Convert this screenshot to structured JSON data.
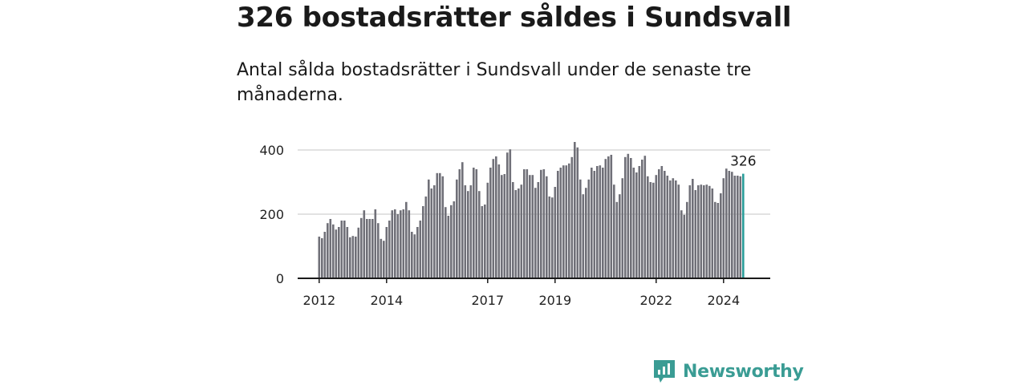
{
  "header": {
    "title": "326 bostadsrätter såldes i Sundsvall",
    "subtitle": "Antal sålda bostadsrätter i Sundsvall under de senaste tre månaderna."
  },
  "brand": {
    "name": "Newsworthy",
    "color": "#3a9c94"
  },
  "chart_data": {
    "type": "bar",
    "x_start": "2012-01",
    "frequency": "monthly",
    "x_ticks": [
      "2012",
      "2014",
      "2017",
      "2019",
      "2022",
      "2024"
    ],
    "y_ticks": [
      "0",
      "200",
      "400"
    ],
    "ylim": [
      0,
      440
    ],
    "grid": true,
    "values": [
      130,
      125,
      145,
      172,
      185,
      168,
      152,
      160,
      180,
      180,
      160,
      128,
      132,
      130,
      158,
      188,
      212,
      185,
      185,
      185,
      215,
      172,
      123,
      117,
      160,
      180,
      212,
      215,
      200,
      212,
      215,
      238,
      212,
      145,
      137,
      160,
      180,
      225,
      255,
      308,
      280,
      290,
      328,
      328,
      318,
      222,
      195,
      228,
      240,
      308,
      340,
      362,
      290,
      272,
      290,
      345,
      340,
      272,
      225,
      230,
      298,
      345,
      372,
      380,
      355,
      322,
      325,
      392,
      402,
      300,
      275,
      280,
      292,
      340,
      340,
      322,
      322,
      282,
      300,
      338,
      340,
      318,
      255,
      252,
      285,
      335,
      345,
      352,
      352,
      358,
      378,
      425,
      408,
      308,
      262,
      282,
      308,
      345,
      335,
      350,
      352,
      345,
      372,
      380,
      385,
      292,
      238,
      262,
      312,
      378,
      388,
      375,
      345,
      330,
      350,
      370,
      382,
      318,
      300,
      298,
      322,
      340,
      350,
      335,
      320,
      305,
      312,
      305,
      292,
      212,
      198,
      238,
      290,
      310,
      275,
      290,
      292,
      290,
      292,
      288,
      280,
      238,
      235,
      265,
      312,
      342,
      335,
      332,
      320,
      320,
      318,
      326
    ],
    "highlight": {
      "index": 151,
      "value": 326,
      "label": "326",
      "color": "#2a9d9a"
    },
    "bar_color": "#707078",
    "gridline_color": "#d8d8d8"
  }
}
